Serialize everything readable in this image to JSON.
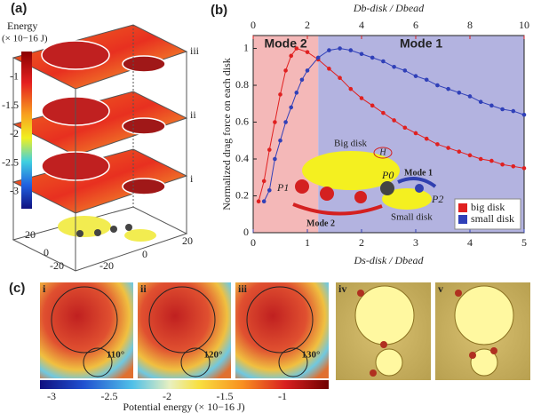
{
  "chart_data": {
    "type": "line",
    "panel_label": "(b)",
    "xlabel": "Ds-disk / Dbead",
    "x2label": "Db-disk / Dbead",
    "ylabel": "Normalized drag force on each disk",
    "xlim": [
      0,
      5
    ],
    "xticks": [
      0,
      1,
      2,
      3,
      4,
      5
    ],
    "x2lim": [
      0,
      10
    ],
    "x2ticks": [
      0,
      2,
      4,
      6,
      8,
      10
    ],
    "ylim": [
      0,
      1.07
    ],
    "yticks": [
      0,
      0.2,
      0.4,
      0.6,
      0.8,
      1
    ],
    "legend": "lower right",
    "regions": [
      {
        "name": "Mode 2",
        "from": 0,
        "to": 1.2,
        "color": "#f4b8b8",
        "label_color": "#d42020"
      },
      {
        "name": "Mode 1",
        "from": 1.2,
        "to": 5,
        "color": "#b3b3e0",
        "label_color": "#3040b0"
      }
    ],
    "series": [
      {
        "name": "big disk",
        "color": "#e02020",
        "x": [
          0.1,
          0.2,
          0.3,
          0.4,
          0.5,
          0.6,
          0.7,
          0.8,
          1.0,
          1.2,
          1.4,
          1.6,
          1.8,
          2.0,
          2.2,
          2.4,
          2.6,
          2.8,
          3.0,
          3.2,
          3.4,
          3.6,
          3.8,
          4.0,
          4.2,
          4.4,
          4.6,
          4.8,
          5.0
        ],
        "values": [
          0.17,
          0.28,
          0.45,
          0.6,
          0.75,
          0.88,
          0.96,
          1.0,
          0.98,
          0.94,
          0.89,
          0.84,
          0.78,
          0.73,
          0.69,
          0.65,
          0.61,
          0.57,
          0.54,
          0.51,
          0.48,
          0.46,
          0.44,
          0.42,
          0.4,
          0.39,
          0.37,
          0.36,
          0.35
        ]
      },
      {
        "name": "small disk",
        "color": "#3040b8",
        "x": [
          0.2,
          0.3,
          0.4,
          0.5,
          0.6,
          0.7,
          0.8,
          0.9,
          1.0,
          1.2,
          1.4,
          1.6,
          1.8,
          2.0,
          2.2,
          2.4,
          2.6,
          2.8,
          3.0,
          3.2,
          3.4,
          3.6,
          3.8,
          4.0,
          4.2,
          4.4,
          4.6,
          4.8,
          5.0
        ],
        "values": [
          0.17,
          0.23,
          0.4,
          0.5,
          0.6,
          0.68,
          0.76,
          0.83,
          0.88,
          0.95,
          0.99,
          1.0,
          0.99,
          0.97,
          0.95,
          0.93,
          0.9,
          0.88,
          0.85,
          0.83,
          0.8,
          0.78,
          0.76,
          0.74,
          0.71,
          0.69,
          0.67,
          0.66,
          0.64
        ]
      }
    ],
    "inset": {
      "big_disk": "Big disk",
      "small_disk": "Small disk",
      "p1": "P1",
      "p0": "P0",
      "p2": "P2",
      "mode1": "Mode 1",
      "mode2": "Mode 2",
      "field": "H"
    }
  },
  "panel_a": {
    "label": "(a)",
    "colorbar_title": "Energy",
    "colorbar_unit": "(× 10−16 J)",
    "clim": [
      -3.3,
      -0.55
    ],
    "colorbar_ticks": [
      -1,
      -1.5,
      -2,
      -2.5,
      -3
    ],
    "layers": [
      "iii",
      "ii",
      "i"
    ],
    "axis_left": [
      "20",
      "0",
      "-20"
    ],
    "axis_right": [
      "-20",
      "0",
      "20"
    ]
  },
  "panel_c": {
    "label": "(c)",
    "panels": [
      "i",
      "ii",
      "iii",
      "iv",
      "v"
    ],
    "angles": [
      "110°",
      "120°",
      "130°"
    ],
    "clim": [
      -3.1,
      -0.6
    ],
    "colorbar_ticks": [
      -3,
      -2.5,
      -2,
      -1.5,
      -1
    ],
    "colorbar_label": "Potential energy (× 10−16 J)"
  }
}
